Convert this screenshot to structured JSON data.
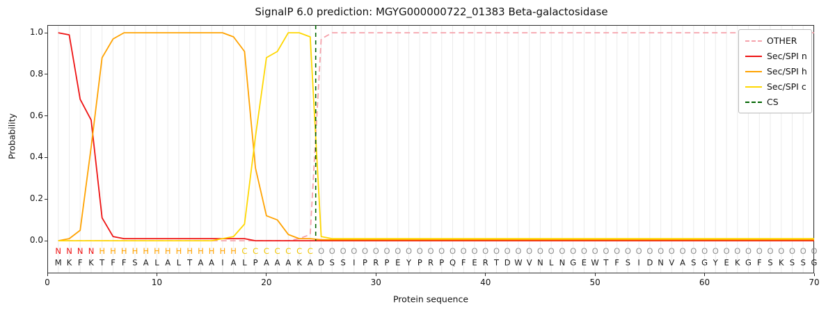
{
  "chart_data": {
    "type": "line",
    "title": "SignalP 6.0 prediction: MGYG000000722_01383 Beta-galactosidase",
    "xlabel": "Protein sequence",
    "ylabel": "Probability",
    "xlim": [
      0,
      70
    ],
    "ylim": [
      -0.157,
      1.037
    ],
    "xticks": [
      0,
      10,
      20,
      30,
      40,
      50,
      60,
      70
    ],
    "yticks": [
      0,
      0.2,
      0.4,
      0.6,
      0.8,
      1.0
    ],
    "x_start": 1,
    "grid": "vertical line per residue",
    "legend_position": "upper right",
    "series": [
      {
        "id": "other",
        "name": "OTHER",
        "color": "#f5a1aa",
        "dashed": true,
        "values": [
          0,
          0,
          0,
          0,
          0,
          0,
          0,
          0,
          0,
          0,
          0,
          0,
          0,
          0,
          0,
          0,
          0,
          0,
          0,
          0,
          0,
          0,
          0.01,
          0.03,
          0.97,
          1,
          1,
          1,
          1,
          1,
          1,
          1,
          1,
          1,
          1,
          1,
          1,
          1,
          1,
          1,
          1,
          1,
          1,
          1,
          1,
          1,
          1,
          1,
          1,
          1,
          1,
          1,
          1,
          1,
          1,
          1,
          1,
          1,
          1,
          1,
          1,
          1,
          1,
          1,
          1,
          1,
          1,
          1,
          1,
          1
        ]
      },
      {
        "id": "sec-spi-n",
        "name": "Sec/SPI n",
        "color": "#ee1111",
        "dashed": false,
        "values": [
          1,
          0.99,
          0.68,
          0.58,
          0.11,
          0.02,
          0.01,
          0.01,
          0.01,
          0.01,
          0.01,
          0.01,
          0.01,
          0.01,
          0.01,
          0.01,
          0.01,
          0.01,
          0,
          0,
          0,
          0,
          0,
          0,
          0,
          0,
          0,
          0,
          0,
          0,
          0,
          0,
          0,
          0,
          0,
          0,
          0,
          0,
          0,
          0,
          0,
          0,
          0,
          0,
          0,
          0,
          0,
          0,
          0,
          0,
          0,
          0,
          0,
          0,
          0,
          0,
          0,
          0,
          0,
          0,
          0,
          0,
          0,
          0,
          0,
          0,
          0,
          0,
          0,
          0
        ]
      },
      {
        "id": "sec-spi-h",
        "name": "Sec/SPI h",
        "color": "#ffa200",
        "dashed": false,
        "values": [
          0,
          0.01,
          0.05,
          0.45,
          0.88,
          0.97,
          1,
          1,
          1,
          1,
          1,
          1,
          1,
          1,
          1,
          1,
          0.98,
          0.91,
          0.35,
          0.12,
          0.1,
          0.03,
          0.01,
          0.01,
          0.005,
          0.005,
          0.005,
          0.005,
          0.005,
          0.005,
          0.005,
          0.005,
          0.005,
          0.005,
          0.005,
          0.005,
          0.005,
          0.005,
          0.005,
          0.005,
          0.005,
          0.005,
          0.005,
          0.005,
          0.005,
          0.005,
          0.005,
          0.005,
          0.005,
          0.005,
          0.005,
          0.005,
          0.005,
          0.005,
          0.005,
          0.005,
          0.005,
          0.005,
          0.005,
          0.005,
          0.005,
          0.005,
          0.005,
          0.005,
          0.005,
          0.005,
          0.005,
          0.005,
          0.005,
          0.005
        ]
      },
      {
        "id": "sec-spi-c",
        "name": "Sec/SPI c",
        "color": "#ffd700",
        "dashed": false,
        "values": [
          0,
          0,
          0,
          0,
          0,
          0,
          0,
          0,
          0,
          0,
          0,
          0,
          0,
          0,
          0,
          0.01,
          0.02,
          0.08,
          0.5,
          0.88,
          0.91,
          1,
          1,
          0.98,
          0.02,
          0.01,
          0.01,
          0.01,
          0.01,
          0.01,
          0.01,
          0.01,
          0.01,
          0.01,
          0.01,
          0.01,
          0.01,
          0.01,
          0.01,
          0.01,
          0.01,
          0.01,
          0.01,
          0.01,
          0.01,
          0.01,
          0.01,
          0.01,
          0.01,
          0.01,
          0.01,
          0.01,
          0.01,
          0.01,
          0.01,
          0.01,
          0.01,
          0.01,
          0.01,
          0.01,
          0.01,
          0.01,
          0.01,
          0.01,
          0.01,
          0.01,
          0.01,
          0.01,
          0.01,
          0.01
        ]
      }
    ],
    "cs_marker": {
      "id": "cs",
      "name": "CS",
      "x": 24.5,
      "color": "#006400",
      "dashed": true
    }
  },
  "sequence_track": {
    "residues": "MKFKTFFSALALTAAIALPAAAKADSSIPRPEYPRPQFERTDWVNLNGEWTFSIDNVASGYEKGFSKSSG",
    "regions": "NNNNHHHHHHHHHHHHHCCCCCCCOOOOOOOOOOOOOOOOOOOOOOOOOOOOOOOOOOOOOOOOOOOOOO",
    "region_colors": {
      "N": "#ee1111",
      "H": "#ffa200",
      "C": "#f0c400",
      "O": "#909090"
    },
    "residue_color": "#1a1a1a"
  },
  "legend": {
    "entries": [
      {
        "id": "other",
        "label": "OTHER",
        "color": "#f5a1aa",
        "dashed": true
      },
      {
        "id": "sec-spi-n",
        "label": "Sec/SPI n",
        "color": "#ee1111",
        "dashed": false
      },
      {
        "id": "sec-spi-h",
        "label": "Sec/SPI h",
        "color": "#ffa200",
        "dashed": false
      },
      {
        "id": "sec-spi-c",
        "label": "Sec/SPI c",
        "color": "#ffd700",
        "dashed": false
      },
      {
        "id": "cs",
        "label": "CS",
        "color": "#006400",
        "dashed": true
      }
    ]
  }
}
